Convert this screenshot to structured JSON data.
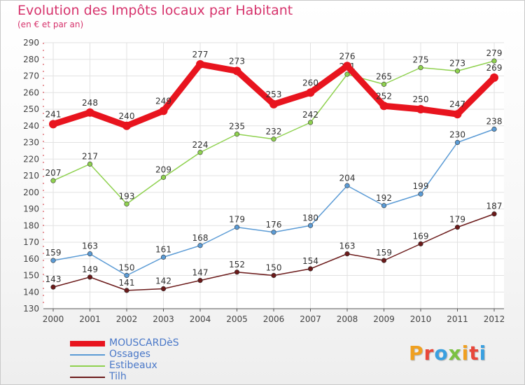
{
  "header": {
    "title": "Evolution des Impôts locaux par Habitant",
    "subtitle": "(en € et par an)"
  },
  "logo": {
    "text": "Proxiti",
    "colors": [
      "#f0a020",
      "#e8473a",
      "#3aa0e0",
      "#7bc142",
      "#f0a020",
      "#e8473a",
      "#3aa0e0"
    ]
  },
  "chart_data": {
    "type": "line",
    "x": [
      "2000",
      "2001",
      "2002",
      "2003",
      "2004",
      "2005",
      "2006",
      "2007",
      "2008",
      "2009",
      "2010",
      "2011",
      "2012"
    ],
    "ylim": [
      130,
      290
    ],
    "yticks": [
      130,
      140,
      150,
      160,
      170,
      180,
      190,
      200,
      210,
      220,
      230,
      240,
      250,
      260,
      270,
      280,
      290
    ],
    "grid": true,
    "legend": "bottom-left",
    "series": [
      {
        "name": "MOUSCARDèS",
        "color": "#e8141e",
        "values": [
          241,
          248,
          240,
          249,
          277,
          273,
          253,
          260,
          276,
          252,
          250,
          247,
          269
        ]
      },
      {
        "name": "Ossages",
        "color": "#5b9bd5",
        "values": [
          159,
          163,
          150,
          161,
          168,
          179,
          176,
          180,
          204,
          192,
          199,
          230,
          238
        ]
      },
      {
        "name": "Estibeaux",
        "color": "#8fd14f",
        "values": [
          207,
          217,
          193,
          209,
          224,
          235,
          232,
          242,
          271,
          265,
          275,
          273,
          279
        ]
      },
      {
        "name": "Tilh",
        "color": "#6b1a1a",
        "values": [
          143,
          149,
          141,
          142,
          147,
          152,
          150,
          154,
          163,
          159,
          169,
          179,
          187
        ]
      }
    ]
  }
}
